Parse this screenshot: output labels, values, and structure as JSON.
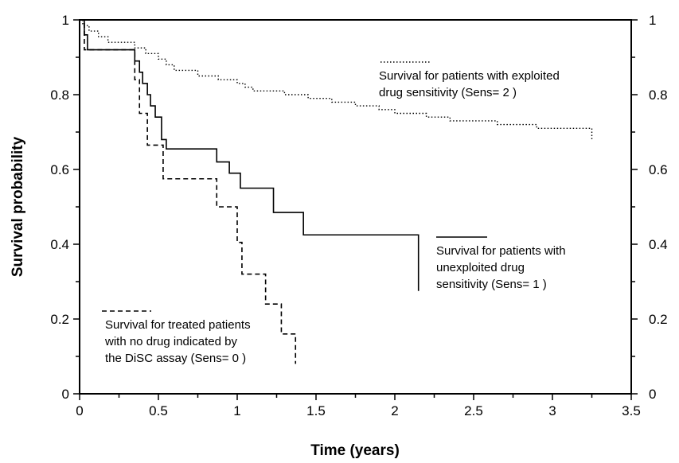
{
  "chart_data": {
    "type": "line",
    "title": "",
    "xlabel": "Time (years)",
    "ylabel": "Survival probability",
    "xlim": [
      0,
      3.5
    ],
    "ylim": [
      0,
      1
    ],
    "xticks": [
      "0",
      "0.5",
      "1",
      "1.5",
      "2",
      "2.5",
      "3",
      "3.5"
    ],
    "yticks_left": [
      "0",
      "0.2",
      "0.4",
      "0.6",
      "0.8",
      "1"
    ],
    "yticks_right": [
      "0",
      "0.2",
      "0.4",
      "0.6",
      "0.8",
      "1"
    ],
    "grid": false,
    "step": true,
    "series": [
      {
        "name": "Survival for patients with exploited drug sensitivity (Sens= 2 )",
        "legend_lines": [
          "Survival for patients with exploited",
          "drug sensitivity (Sens= 2 )"
        ],
        "style": "dotted",
        "x": [
          0,
          0.02,
          0.06,
          0.12,
          0.18,
          0.35,
          0.42,
          0.5,
          0.55,
          0.6,
          0.75,
          0.88,
          1.0,
          1.05,
          1.1,
          1.3,
          1.45,
          1.6,
          1.75,
          1.9,
          2.0,
          2.2,
          2.35,
          2.6,
          2.65,
          2.9,
          3.25,
          3.25
        ],
        "y": [
          1,
          0.985,
          0.97,
          0.955,
          0.94,
          0.925,
          0.91,
          0.895,
          0.88,
          0.865,
          0.85,
          0.84,
          0.83,
          0.82,
          0.81,
          0.8,
          0.79,
          0.78,
          0.77,
          0.76,
          0.75,
          0.74,
          0.73,
          0.73,
          0.72,
          0.71,
          0.7,
          0.68
        ]
      },
      {
        "name": "Survival for patients with unexploited drug sensitivity (Sens= 1 )",
        "legend_lines": [
          "Survival for patients with",
          "unexploited drug",
          "sensitivity (Sens= 1 )"
        ],
        "style": "solid",
        "x": [
          0,
          0.03,
          0.05,
          0.08,
          0.35,
          0.38,
          0.4,
          0.43,
          0.45,
          0.48,
          0.52,
          0.55,
          0.87,
          0.95,
          1.02,
          1.23,
          1.42,
          2.15,
          2.15
        ],
        "y": [
          1,
          0.96,
          0.92,
          0.92,
          0.89,
          0.86,
          0.83,
          0.8,
          0.77,
          0.74,
          0.68,
          0.655,
          0.62,
          0.59,
          0.55,
          0.485,
          0.425,
          0.425,
          0.275
        ]
      },
      {
        "name": "Survival for treated patients with no drug indicated by the DiSC assay (Sens= 0 )",
        "legend_lines": [
          "Survival for treated patients",
          "with no drug indicated by",
          "the DiSC assay (Sens= 0 )"
        ],
        "style": "dashed",
        "x": [
          0,
          0.03,
          0.08,
          0.35,
          0.38,
          0.43,
          0.53,
          0.87,
          1.0,
          1.03,
          1.07,
          1.18,
          1.28,
          1.37,
          1.37
        ],
        "y": [
          1,
          0.92,
          0.92,
          0.84,
          0.75,
          0.665,
          0.575,
          0.5,
          0.405,
          0.32,
          0.32,
          0.24,
          0.16,
          0.16,
          0.08
        ]
      }
    ]
  }
}
